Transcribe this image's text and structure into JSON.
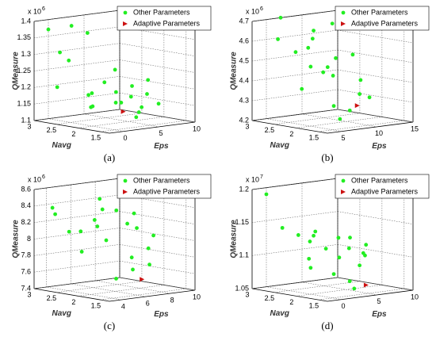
{
  "chart_data": [
    {
      "type": "scatter3d",
      "caption": "(a)",
      "xlabel": "Eps",
      "ylabel": "Navg",
      "zlabel": "QMeasure",
      "z_scale": "x 10",
      "z_exp": "6",
      "xlim": [
        -2,
        10
      ],
      "xticks": [
        0,
        5,
        10
      ],
      "ylim": [
        1.3,
        3
      ],
      "yticks": [
        1.5,
        2,
        2.5,
        3
      ],
      "zlim": [
        1.1,
        1.4
      ],
      "zticks": [
        1.1,
        1.15,
        1.2,
        1.25,
        1.3,
        1.35,
        1.4
      ],
      "series": [
        {
          "name": "Other Parameters",
          "color": "#22ee22",
          "marker": "circle",
          "x": [
            0,
            1,
            2,
            3,
            4,
            5,
            6,
            7,
            8,
            2,
            3,
            4,
            5,
            6,
            1,
            0,
            8,
            9,
            3,
            5,
            7,
            0,
            1
          ],
          "y": [
            2,
            2.2,
            1.8,
            2.5,
            2,
            1.7,
            2.1,
            1.9,
            2.4,
            2.8,
            2.6,
            1.6,
            2.3,
            2.7,
            2.9,
            3,
            1.8,
            2.2,
            1.5,
            2.9,
            2.6,
            2.8,
            2.7
          ],
          "z": [
            1.16,
            1.15,
            1.17,
            1.18,
            1.16,
            1.15,
            1.17,
            1.18,
            1.19,
            1.38,
            1.36,
            1.14,
            1.25,
            1.2,
            1.3,
            1.37,
            1.15,
            1.21,
            1.13,
            1.16,
            1.17,
            1.2,
            1.28
          ]
        },
        {
          "name": "Adaptive Parameters",
          "color": "#cc1111",
          "marker": "triangle",
          "x": [
            3
          ],
          "y": [
            1.8
          ],
          "z": [
            1.14
          ]
        }
      ]
    },
    {
      "type": "scatter3d",
      "caption": "(b)",
      "xlabel": "Eps",
      "ylabel": "Navg",
      "zlabel": "QMeasure",
      "z_scale": "x 10",
      "z_exp": "6",
      "xlim": [
        3,
        15
      ],
      "xticks": [
        5,
        10,
        15
      ],
      "ylim": [
        1.3,
        3
      ],
      "yticks": [
        1.5,
        2,
        2.5,
        3
      ],
      "zlim": [
        4.2,
        4.7
      ],
      "zticks": [
        4.2,
        4.3,
        4.4,
        4.5,
        4.6,
        4.7
      ],
      "series": [
        {
          "name": "Other Parameters",
          "color": "#22ee22",
          "marker": "circle",
          "x": [
            5,
            6,
            7,
            8,
            9,
            10,
            11,
            12,
            13,
            6,
            7,
            8,
            9,
            10,
            11,
            5,
            6,
            12,
            14,
            8
          ],
          "y": [
            2,
            2.5,
            1.8,
            2.2,
            2.6,
            1.7,
            2.4,
            2,
            2.8,
            2.9,
            3,
            1.6,
            2.7,
            2.3,
            2.9,
            2.2,
            1.5,
            1.8,
            2.5,
            2.1
          ],
          "z": [
            4.5,
            4.55,
            4.3,
            4.45,
            4.6,
            4.35,
            4.5,
            4.4,
            4.65,
            4.6,
            4.7,
            4.28,
            4.55,
            4.42,
            4.62,
            4.38,
            4.25,
            4.32,
            4.5,
            4.48
          ]
        },
        {
          "name": "Adaptive Parameters",
          "color": "#cc1111",
          "marker": "triangle",
          "x": [
            9
          ],
          "y": [
            1.6
          ],
          "z": [
            4.3
          ]
        }
      ]
    },
    {
      "type": "scatter3d",
      "caption": "(c)",
      "xlabel": "Eps",
      "ylabel": "Navg",
      "zlabel": "QMeasure",
      "z_scale": "x 10",
      "z_exp": "6",
      "xlim": [
        3,
        10
      ],
      "xticks": [
        4,
        6,
        8,
        10
      ],
      "ylim": [
        1.3,
        3
      ],
      "yticks": [
        1.5,
        2,
        2.5,
        3
      ],
      "zlim": [
        7.4,
        8.6
      ],
      "zticks": [
        7.4,
        7.6,
        7.8,
        8,
        8.2,
        8.4,
        8.6
      ],
      "series": [
        {
          "name": "Other Parameters",
          "color": "#22ee22",
          "marker": "circle",
          "x": [
            4,
            5,
            6,
            7,
            8,
            9,
            4.5,
            5.5,
            6.5,
            7.5,
            8.5,
            9.5,
            5,
            6,
            7,
            8,
            4,
            9,
            6,
            7
          ],
          "y": [
            2.8,
            2.5,
            2.2,
            2,
            1.8,
            2.4,
            3,
            2.9,
            2.6,
            2.7,
            2.2,
            2.1,
            1.7,
            1.6,
            1.5,
            2.9,
            2.2,
            2.8,
            2.4,
            1.9
          ],
          "z": [
            8.3,
            8.1,
            8,
            8.2,
            7.9,
            8.25,
            8.35,
            8.05,
            8.2,
            8.3,
            8.1,
            8,
            7.6,
            7.7,
            7.75,
            8.4,
            7.9,
            8.25,
            8.15,
            7.8
          ]
        },
        {
          "name": "Adaptive Parameters",
          "color": "#cc1111",
          "marker": "triangle",
          "x": [
            6
          ],
          "y": [
            1.4
          ],
          "z": [
            7.6
          ]
        }
      ]
    },
    {
      "type": "scatter3d",
      "caption": "(d)",
      "xlabel": "Eps",
      "ylabel": "Navg",
      "zlabel": "QMeasure",
      "z_scale": "x 10",
      "z_exp": "7",
      "xlim": [
        -2,
        10
      ],
      "xticks": [
        0,
        5,
        10
      ],
      "ylim": [
        1.3,
        3
      ],
      "yticks": [
        1.5,
        2,
        2.5,
        3
      ],
      "zlim": [
        1.05,
        1.2
      ],
      "zticks": [
        1.05,
        1.1,
        1.15,
        1.2
      ],
      "series": [
        {
          "name": "Other Parameters",
          "color": "#22ee22",
          "marker": "circle",
          "x": [
            0,
            1,
            2,
            3,
            4,
            5,
            6,
            7,
            8,
            9,
            1,
            2,
            3,
            4,
            5,
            6,
            7,
            8,
            0,
            3
          ],
          "y": [
            2,
            2.2,
            1.8,
            2.5,
            2,
            1.7,
            2.1,
            1.9,
            2.4,
            2.2,
            2.8,
            2.6,
            1.6,
            2.3,
            2.7,
            2.9,
            2.5,
            2.1,
            3,
            1.5
          ],
          "z": [
            1.09,
            1.1,
            1.08,
            1.12,
            1.1,
            1.09,
            1.11,
            1.1,
            1.12,
            1.11,
            1.14,
            1.13,
            1.07,
            1.11,
            1.13,
            1.12,
            1.12,
            1.1,
            1.19,
            1.06
          ]
        },
        {
          "name": "Adaptive Parameters",
          "color": "#cc1111",
          "marker": "triangle",
          "x": [
            4
          ],
          "y": [
            1.4
          ],
          "z": [
            1.065
          ]
        }
      ]
    }
  ]
}
